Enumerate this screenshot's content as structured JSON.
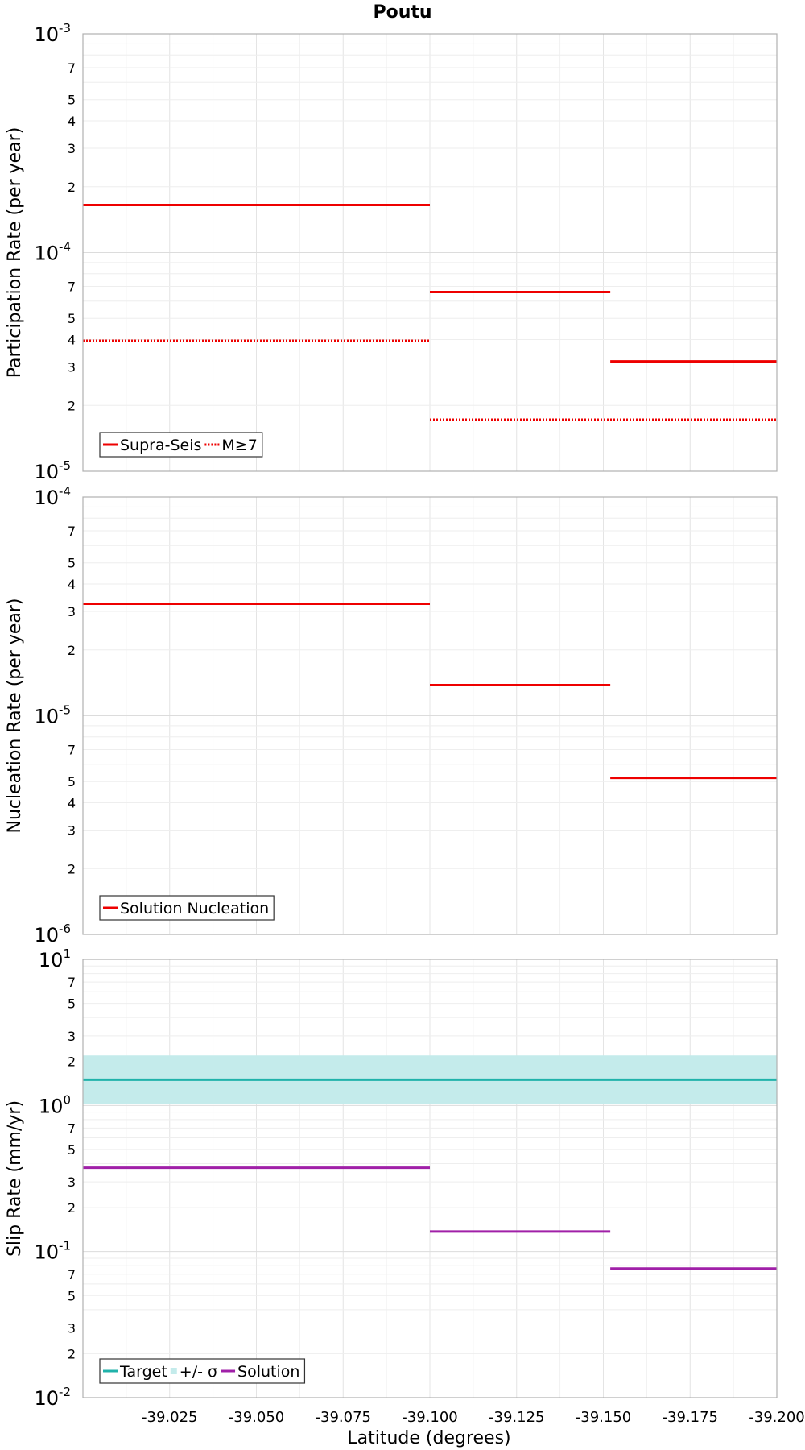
{
  "chart_data": {
    "type": "line",
    "title": "Poutu",
    "xlabel": "Latitude (degrees)",
    "xlim": [
      -39.0,
      -39.2
    ],
    "x_ticks": [
      "-39.025",
      "-39.050",
      "-39.075",
      "-39.100",
      "-39.125",
      "-39.150",
      "-39.175",
      "-39.200"
    ],
    "panels": [
      {
        "id": "participation",
        "ylabel": "Participation Rate (per year)",
        "yscale": "log",
        "ylim": [
          1e-05,
          0.001
        ],
        "major_ticks": [
          {
            "base": "10",
            "exp": "-5"
          },
          {
            "base": "10",
            "exp": "-4"
          },
          {
            "base": "10",
            "exp": "-3"
          }
        ],
        "minor_labels": [
          "2",
          "3",
          "4",
          "5",
          "7"
        ],
        "legend": [
          "Supra-Seis",
          "M≥7"
        ],
        "series": [
          {
            "name": "Supra-Seis",
            "color": "#ee0000",
            "style": "solid",
            "segments": [
              {
                "x0": -39.0,
                "x1": -39.1,
                "y": 0.000165
              },
              {
                "x0": -39.1,
                "x1": -39.152,
                "y": 6.6e-05
              },
              {
                "x0": -39.152,
                "x1": -39.2,
                "y": 3.18e-05
              }
            ]
          },
          {
            "name": "M≥7",
            "color": "#ee0000",
            "style": "dotted",
            "segments": [
              {
                "x0": -39.0,
                "x1": -39.1,
                "y": 3.95e-05
              },
              {
                "x0": -39.1,
                "x1": -39.2,
                "y": 1.72e-05
              }
            ]
          }
        ]
      },
      {
        "id": "nucleation",
        "ylabel": "Nucleation Rate (per year)",
        "yscale": "log",
        "ylim": [
          1e-06,
          0.0001
        ],
        "major_ticks": [
          {
            "base": "10",
            "exp": "-6"
          },
          {
            "base": "10",
            "exp": "-5"
          },
          {
            "base": "10",
            "exp": "-4"
          }
        ],
        "minor_labels": [
          "2",
          "3",
          "4",
          "5",
          "7"
        ],
        "legend": [
          "Solution Nucleation"
        ],
        "series": [
          {
            "name": "Solution Nucleation",
            "color": "#ee0000",
            "style": "solid",
            "segments": [
              {
                "x0": -39.0,
                "x1": -39.1,
                "y": 3.25e-05
              },
              {
                "x0": -39.1,
                "x1": -39.152,
                "y": 1.38e-05
              },
              {
                "x0": -39.152,
                "x1": -39.2,
                "y": 5.2e-06
              }
            ]
          }
        ]
      },
      {
        "id": "slip",
        "ylabel": "Slip Rate (mm/yr)",
        "yscale": "log",
        "ylim": [
          0.01,
          10
        ],
        "major_ticks": [
          {
            "base": "10",
            "exp": "-2"
          },
          {
            "base": "10",
            "exp": "-1"
          },
          {
            "base": "10",
            "exp": "0"
          },
          {
            "base": "10",
            "exp": "1"
          }
        ],
        "minor_labels": [
          "2",
          "3",
          "5",
          "7"
        ],
        "legend": [
          "Target",
          "+/- σ",
          "Solution"
        ],
        "band": {
          "name": "+/- σ",
          "color": "#c4ebeb",
          "y0": 1.03,
          "y1": 2.2
        },
        "series": [
          {
            "name": "Target",
            "color": "#20b2aa",
            "style": "solid",
            "segments": [
              {
                "x0": -39.0,
                "x1": -39.2,
                "y": 1.5
              }
            ]
          },
          {
            "name": "Solution",
            "color": "#a020a8",
            "style": "solid",
            "segments": [
              {
                "x0": -39.0,
                "x1": -39.1,
                "y": 0.375
              },
              {
                "x0": -39.1,
                "x1": -39.152,
                "y": 0.137
              },
              {
                "x0": -39.152,
                "x1": -39.2,
                "y": 0.0765
              }
            ]
          }
        ]
      }
    ]
  }
}
